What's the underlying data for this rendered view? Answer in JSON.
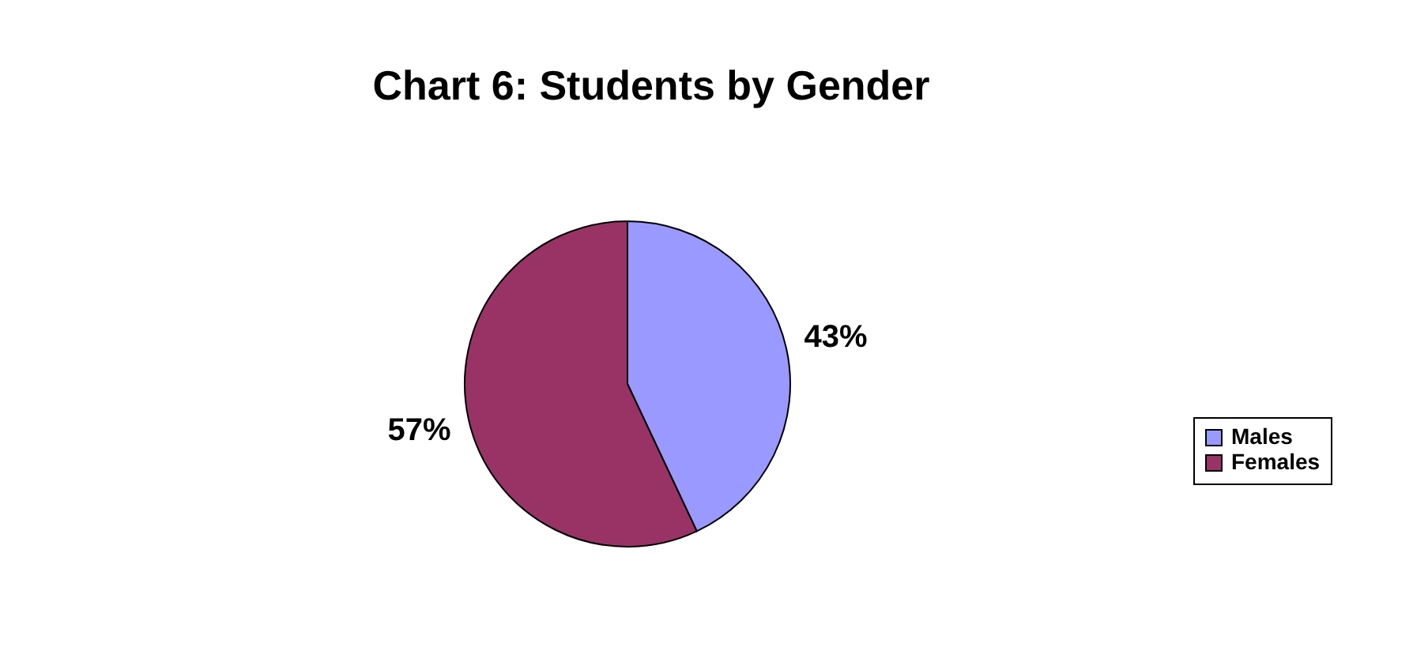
{
  "chart_data": {
    "type": "pie",
    "title": "Chart 6: Students by Gender",
    "categories": [
      "Males",
      "Females"
    ],
    "values": [
      43,
      57
    ],
    "value_labels": [
      "43%",
      "57%"
    ],
    "colors": [
      "#9999ff",
      "#993366"
    ],
    "legend": "right"
  }
}
